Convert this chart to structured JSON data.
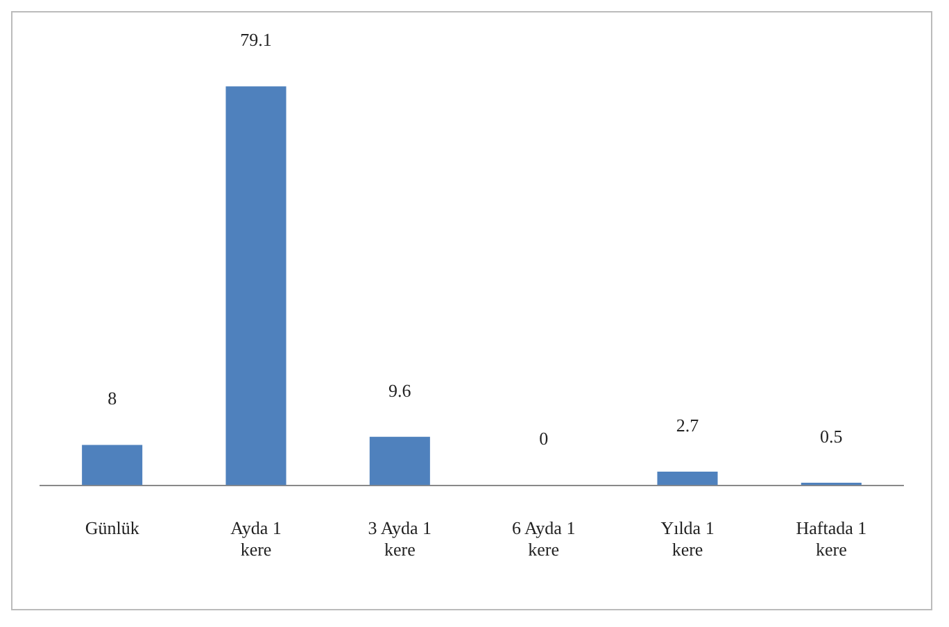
{
  "chart_data": {
    "type": "bar",
    "categories": [
      "Günlük",
      "Ayda 1 kere",
      "3 Ayda 1 kere",
      "6 Ayda 1 kere",
      "Yılda 1 kere",
      "Haftada 1 kere"
    ],
    "values": [
      8,
      79.1,
      9.6,
      0,
      2.7,
      0.5
    ],
    "color": "#4f81bd",
    "data_labels": true,
    "grid": false,
    "legend": false,
    "tick_labels": "x"
  }
}
